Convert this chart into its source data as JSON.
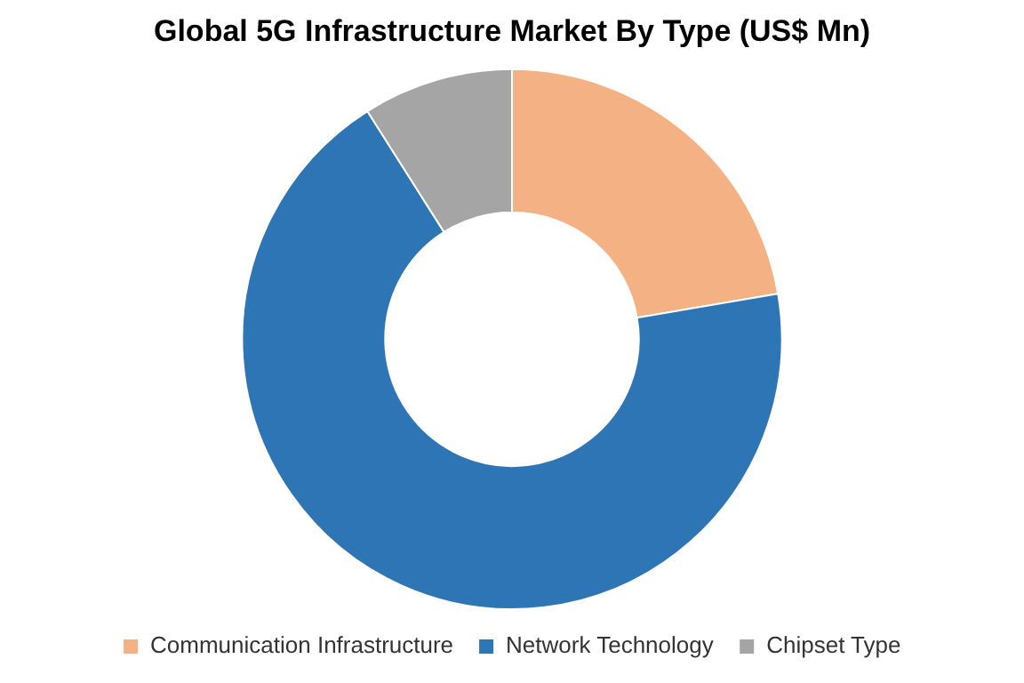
{
  "chart_data": {
    "type": "donut",
    "title": "Global 5G Infrastructure Market By Type (US$ Mn)",
    "categories": [
      "Communication Infrastructure",
      "Network Technology",
      "Chipset Type"
    ],
    "values": [
      22.3,
      68.7,
      9
    ],
    "colors": [
      "#f4b183",
      "#2e75b6",
      "#a5a5a5"
    ],
    "legend": "bottom"
  }
}
